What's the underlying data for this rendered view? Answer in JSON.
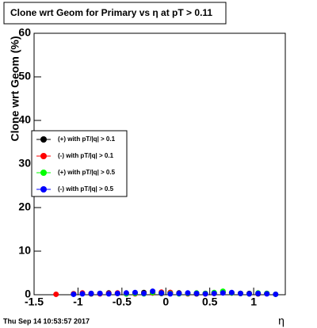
{
  "chart_data": {
    "type": "scatter",
    "title": "Clone wrt Geom for Primary vs  η at pT > 0.11",
    "y_label": "Clone wrt Geom (%)",
    "x_label": "η",
    "timestamp": "Thu Sep 14 10:53:57 2017",
    "x": [
      -1.25,
      -1.15,
      -1.05,
      -0.95,
      -0.85,
      -0.75,
      -0.65,
      -0.55,
      -0.45,
      -0.35,
      -0.25,
      -0.15,
      -0.05,
      0.05,
      0.15,
      0.25,
      0.35,
      0.45,
      0.55,
      0.65,
      0.75,
      0.85,
      0.95,
      1.05,
      1.15,
      1.25
    ],
    "series": [
      {
        "name": "(+) with pT/|q| > 0.1",
        "color": "#000000",
        "values": [
          null,
          null,
          0.2,
          0.3,
          0.2,
          0.3,
          0.4,
          0.3,
          0.2,
          0.3,
          0.5,
          0.4,
          0.3,
          0.5,
          0.4,
          0.3,
          0.2,
          0.3,
          0.4,
          0.6,
          0.4,
          0.3,
          0.3,
          0.2,
          0.3,
          null
        ]
      },
      {
        "name": "(-) with pT/|q| > 0.1",
        "color": "#ff0000",
        "values": [
          0.1,
          null,
          0.2,
          0.4,
          0.3,
          0.2,
          0.3,
          0.4,
          0.3,
          0.2,
          0.3,
          0.4,
          0.6,
          0.5,
          0.3,
          0.2,
          0.3,
          0.2,
          0.3,
          0.5,
          0.4,
          0.3,
          0.2,
          0.3,
          null,
          null
        ]
      },
      {
        "name": "(+) with pT/|q| > 0.5",
        "color": "#00ff00",
        "values": [
          null,
          null,
          null,
          null,
          null,
          null,
          null,
          null,
          0.2,
          0.3,
          0.2,
          0.5,
          0.4,
          0.3,
          0.2,
          0.3,
          0.4,
          0.3,
          0.5,
          0.8,
          0.4,
          0.3,
          0.2,
          0.4,
          0.3,
          0.1
        ]
      },
      {
        "name": "(-) with pT/|q| > 0.5",
        "color": "#0000ff",
        "values": [
          null,
          null,
          0.1,
          0.2,
          0.3,
          0.3,
          0.2,
          0.3,
          0.4,
          0.5,
          0.3,
          0.8,
          0.4,
          0.2,
          0.3,
          0.4,
          0.3,
          0.2,
          0.3,
          0.4,
          0.5,
          0.3,
          0.2,
          0.3,
          0.2,
          0.1
        ]
      }
    ],
    "xlim": [
      -1.5,
      1.36
    ],
    "xticks": [
      -1.5,
      -1,
      -0.5,
      0,
      0.5,
      1
    ],
    "ylim": [
      0,
      60
    ],
    "yticks": [
      0,
      10,
      20,
      30,
      40,
      50,
      60
    ],
    "legend": "left"
  }
}
